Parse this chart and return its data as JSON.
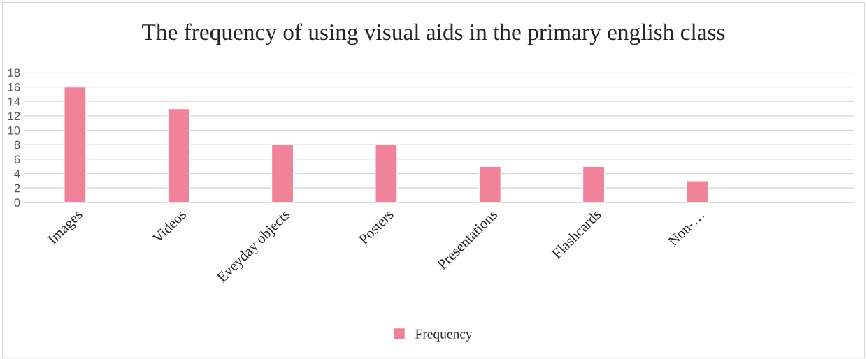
{
  "chart_data": {
    "type": "bar",
    "title": "The frequency of using visual aids in the primary english class",
    "categories": [
      "Images",
      "Videos",
      "Eveyday objects",
      "Posters",
      "Presentations",
      "Flashcards",
      "Non-…",
      null
    ],
    "series": [
      {
        "name": "Frequency",
        "color": "#f08299",
        "values": [
          16,
          13,
          8,
          8,
          5,
          5,
          3,
          null
        ]
      }
    ],
    "ylim": [
      0,
      18
    ],
    "yticks": [
      0,
      2,
      4,
      6,
      8,
      10,
      12,
      14,
      16,
      18
    ],
    "grid": "y",
    "legend": "bottom"
  }
}
